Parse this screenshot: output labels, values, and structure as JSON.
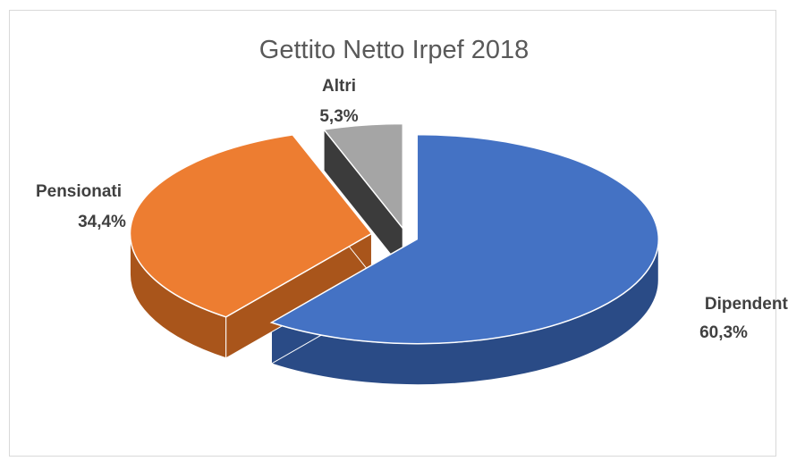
{
  "chart_data": {
    "type": "pie",
    "title": "Gettito Netto Irpef 2018",
    "three_d": true,
    "exploded": true,
    "slices": [
      {
        "name": "Dipendenti",
        "value": 60.3,
        "label": "60,3%",
        "color": "#4472c4",
        "side_color": "#2a4b86"
      },
      {
        "name": "Pensionati",
        "value": 34.4,
        "label": "34,4%",
        "color": "#ed7d31",
        "side_color": "#a9551b"
      },
      {
        "name": "Altri",
        "value": 5.3,
        "label": "5,3%",
        "color": "#a5a5a5",
        "side_color": "#3b3b3b"
      }
    ]
  }
}
